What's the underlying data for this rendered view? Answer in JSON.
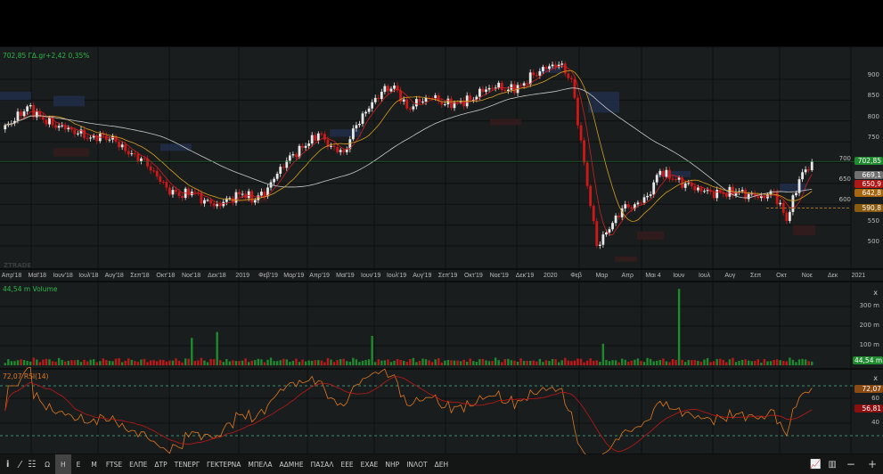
{
  "header": {
    "quote": "702,85 ΓΔ.gr+2,42 0,35%"
  },
  "watermark": "ZTRADE",
  "price_axis": [
    "900",
    "850",
    "800",
    "750",
    "700",
    "650",
    "600",
    "550",
    "500"
  ],
  "price_tags": [
    {
      "text": "702,85",
      "value": 702.85,
      "color": "#1f8a2e"
    },
    {
      "text": "669,1",
      "value": 669.1,
      "color": "#707070"
    },
    {
      "text": "642,8",
      "value": 642.8,
      "color": "#a8660e"
    },
    {
      "text": "650,9",
      "value": 650.9,
      "color": "#b01818"
    },
    {
      "text": "590,8",
      "value": 590.8,
      "color": "#8a5a10"
    }
  ],
  "x_axis": [
    "Απρ'18",
    "Μαϊ'18",
    "Ιουν'18",
    "Ιουλ'18",
    "Αυγ'18",
    "Σεπ'18",
    "Οκτ'18",
    "Νοε'18",
    "Δεκ'18",
    "2019",
    "Φεβ'19",
    "Μαρ'19",
    "Απρ'19",
    "Μαϊ'19",
    "Ιουν'19",
    "Ιουλ'19",
    "Αυγ'19",
    "Σεπ'19",
    "Οκτ'19",
    "Νοε'19",
    "Δεκ'19",
    "2020",
    "Φεβ",
    "Μαρ",
    "Απρ",
    "Μαι 4",
    "Ιουν",
    "Ιουλ",
    "Αυγ",
    "Σεπ",
    "Οκτ",
    "Νοε",
    "Δεκ",
    "2021"
  ],
  "volume": {
    "label": "44,54 m Volume",
    "axis": [
      "300 m",
      "200 m",
      "100 m"
    ],
    "tag": "44,54 m",
    "close": "x"
  },
  "rsi": {
    "label": "72,07 RSI(14)",
    "axis": [
      "60",
      "40"
    ],
    "tag_rsi": "72,07",
    "tag_ma": "56,81",
    "close": "x"
  },
  "colors": {
    "up": "#e8e8e8",
    "down": "#d01818",
    "ma_short": "#d02020",
    "ma_mid": "#d8a020",
    "ma_long": "#c8c8c8",
    "rsi": "#e07820",
    "rsi_ma": "#c01818",
    "volume_up": "#1e8a2e",
    "volume_down": "#c01818"
  },
  "toolbar": {
    "icons": [
      "info-icon",
      "draw-line-icon",
      "layout-icon"
    ],
    "periods": [
      "Ω",
      "Η",
      "Ε",
      "Μ"
    ],
    "active_period": "Η",
    "symbols": [
      "FTSE",
      "ΕΛΠΕ",
      "ΔΤΡ",
      "ΤΕΝΕΡΓ",
      "ΓΕΚΤΕΡΝΑ",
      "ΜΠΕΛΑ",
      "ΑΔΜΗΕ",
      "ΠΑΣΑΛ",
      "ΕΕΕ",
      "ΕΧΑΕ",
      "ΝΗΡ",
      "ΙΝΛΟΤ",
      "ΔΕΗ"
    ],
    "right_icons": [
      "indicators-icon",
      "chart-type-icon",
      "zoom-out-icon",
      "zoom-in-icon"
    ]
  },
  "chart_data": {
    "type": "candlestick",
    "interval": "semi-monthly closes, Apr 2018 – Nov 2020",
    "closes": [
      780,
      800,
      835,
      810,
      790,
      780,
      770,
      760,
      765,
      750,
      720,
      710,
      680,
      640,
      620,
      630,
      610,
      600,
      615,
      625,
      610,
      640,
      690,
      720,
      740,
      770,
      740,
      725,
      790,
      830,
      870,
      885,
      830,
      845,
      855,
      840,
      845,
      850,
      870,
      880,
      875,
      885,
      910,
      925,
      935,
      900,
      700,
      500,
      540,
      590,
      600,
      620,
      680,
      660,
      650,
      640,
      630,
      625,
      630,
      625,
      620,
      630,
      560,
      660,
      703
    ],
    "last": 702.85,
    "ylim": [
      470,
      950
    ],
    "volume_spikes_m": [
      {
        "date": "Ιουν'20",
        "value": 390
      },
      {
        "date": "Νοε'18",
        "value": 140
      },
      {
        "date": "Δεκ'18",
        "value": 170
      },
      {
        "date": "Ιουν'19",
        "value": 150
      },
      {
        "date": "Μαρ'20",
        "value": 110
      }
    ],
    "rsi_levels": [
      70,
      30
    ]
  }
}
